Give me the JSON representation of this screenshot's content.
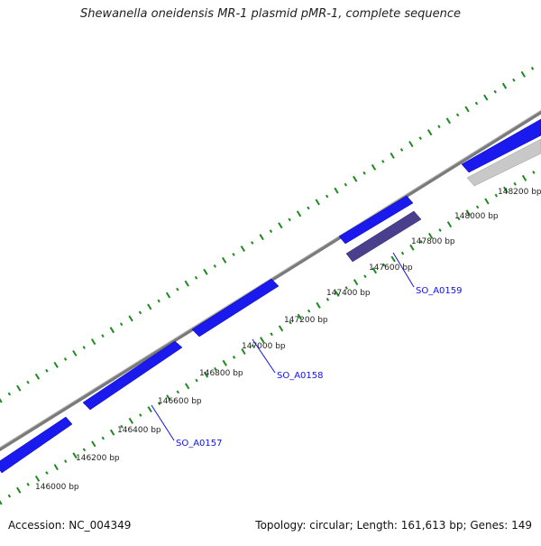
{
  "title": "Shewanella oneidensis MR-1 plasmid pMR-1, complete sequence",
  "footer": {
    "accession": "Accession: NC_004349",
    "summary": "Topology: circular; Length: 161,613 bp; Genes: 149"
  },
  "colors": {
    "gene_blue": "#1a1aee",
    "gene_dark": "#4a3f8c",
    "gene_grey": "#c8c8c8",
    "backbone": "#808080",
    "ticks": "#1e8a1e",
    "label_blue": "#1010ee"
  },
  "scale_labels": [
    "146000 bp",
    "146200 bp",
    "146400 bp",
    "146600 bp",
    "146800 bp",
    "147000 bp",
    "147200 bp",
    "147400 bp",
    "147600 bp",
    "147800 bp",
    "148000 bp",
    "148200 bp"
  ],
  "gene_labels": [
    "SO_A0157",
    "SO_A0158",
    "SO_A0159"
  ]
}
